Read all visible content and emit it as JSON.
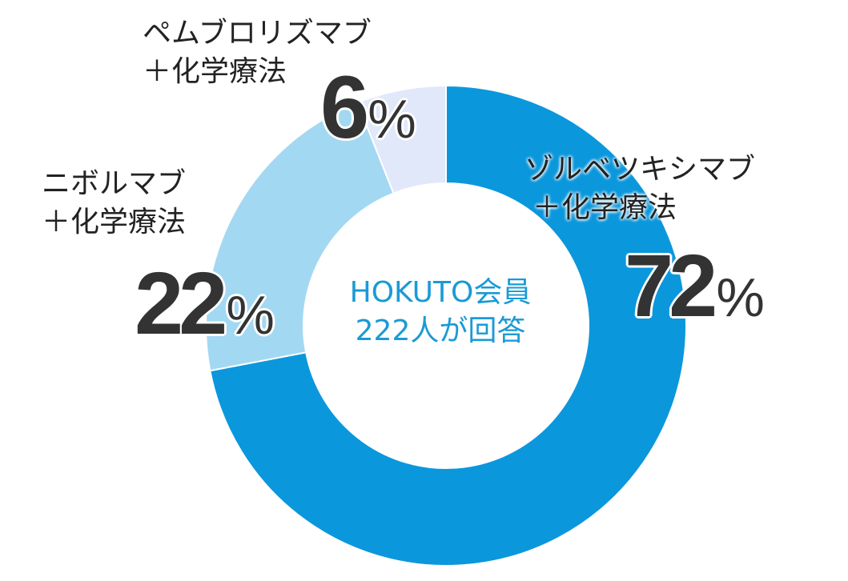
{
  "chart_data": {
    "type": "pie",
    "variant": "donut",
    "slices": [
      {
        "label_line1": "ゾルベツキシマブ",
        "label_line2": "＋化学療法",
        "value": 72,
        "pct_text": "72",
        "color": "#0b97dc"
      },
      {
        "label_line1": "ニボルマブ",
        "label_line2": "＋化学療法",
        "value": 22,
        "pct_text": "22",
        "color": "#a3d8f2"
      },
      {
        "label_line1": "ペムブロリズマブ",
        "label_line2": "＋化学療法",
        "value": 6,
        "pct_text": "6",
        "color": "#e0e8fa"
      }
    ],
    "percent_sign": "%",
    "center_line1": "HOKUTO会員",
    "center_line2": "222人が回答"
  }
}
